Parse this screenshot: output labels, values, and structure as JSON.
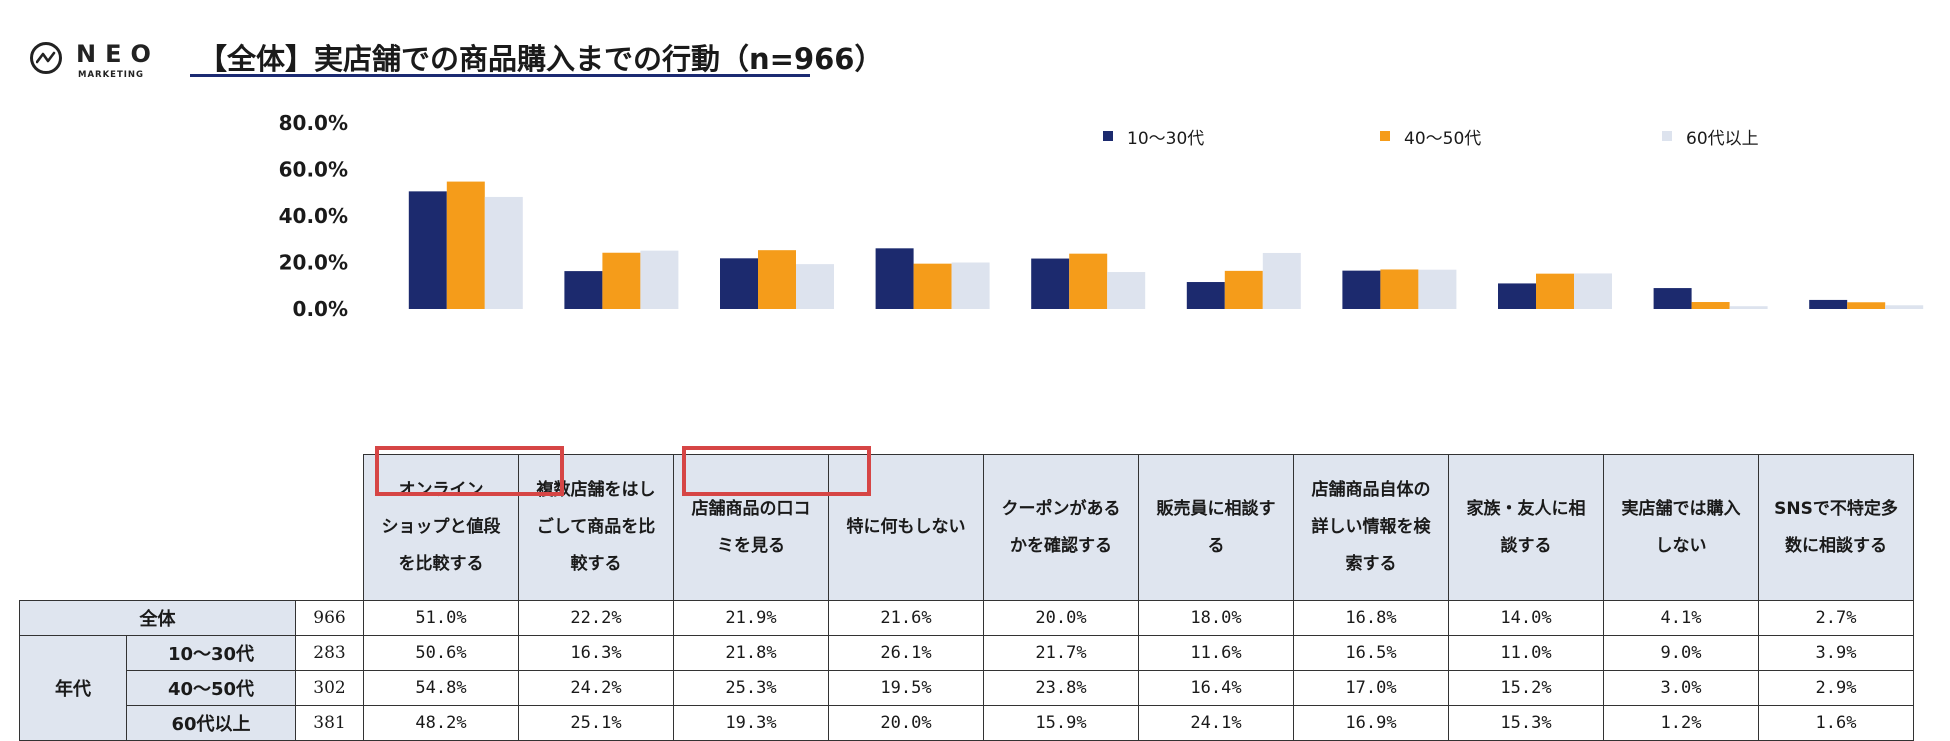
{
  "logo": {
    "word": "NEO",
    "sub": "MARKETING"
  },
  "title": "【全体】実店舗での商品購入までの行動（n=966）",
  "chart_data": {
    "type": "bar",
    "title": "【全体】実店舗での商品購入までの行動（n=966）",
    "ylim": [
      0,
      80
    ],
    "yticks": [
      "80.0%",
      "60.0%",
      "40.0%",
      "20.0%",
      "0.0%"
    ],
    "legend_position": "top-right",
    "categories": [
      "オンラインショップと値段を比較する",
      "複数店舗をはしごして商品を比較する",
      "店舗商品の口コミを見る",
      "特に何もしない",
      "クーポンがあるかを確認する",
      "販売員に相談する",
      "店舗商品自体の詳しい情報を検索する",
      "家族・友人に相談する",
      "実店舗では購入しない",
      "SNSで不特定多数に相談する"
    ],
    "category_lines": [
      [
        "オンライン",
        "ショップと値段",
        "を比較する"
      ],
      [
        "複数店舗をはし",
        "ごして商品を比",
        "較する"
      ],
      [
        "店舗商品の口コ",
        "ミを見る"
      ],
      [
        "特に何もしない"
      ],
      [
        "クーポンがある",
        "かを確認する"
      ],
      [
        "販売員に相談す",
        "る"
      ],
      [
        "店舗商品自体の",
        "詳しい情報を検",
        "索する"
      ],
      [
        "家族・友人に相",
        "談する"
      ],
      [
        "実店舗では購入",
        "しない"
      ],
      [
        "SNSで不特定多",
        "数に相談する"
      ]
    ],
    "series": [
      {
        "name": "10～30代",
        "color": "#1c2a6e",
        "values": [
          50.6,
          16.3,
          21.8,
          26.1,
          21.7,
          11.6,
          16.5,
          11.0,
          9.0,
          3.9
        ]
      },
      {
        "name": "40～50代",
        "color": "#f59c1a",
        "values": [
          54.8,
          24.2,
          25.3,
          19.5,
          23.8,
          16.4,
          17.0,
          15.2,
          3.0,
          2.9
        ]
      },
      {
        "name": "60代以上",
        "color": "#dde3ee",
        "values": [
          48.2,
          25.1,
          19.3,
          20.0,
          15.9,
          24.1,
          16.9,
          15.3,
          1.2,
          1.6
        ]
      }
    ]
  },
  "table": {
    "group_label": "年代",
    "rows": [
      {
        "label": "全体",
        "n": "966",
        "cells": [
          "51.0%",
          "22.2%",
          "21.9%",
          "21.6%",
          "20.0%",
          "18.0%",
          "16.8%",
          "14.0%",
          "4.1%",
          "2.7%"
        ]
      },
      {
        "label": "10～30代",
        "n": "283",
        "cells": [
          "50.6%",
          "16.3%",
          "21.8%",
          "26.1%",
          "21.7%",
          "11.6%",
          "16.5%",
          "11.0%",
          "9.0%",
          "3.9%"
        ]
      },
      {
        "label": "40～50代",
        "n": "302",
        "cells": [
          "54.8%",
          "24.2%",
          "25.3%",
          "19.5%",
          "23.8%",
          "16.4%",
          "17.0%",
          "15.2%",
          "3.0%",
          "2.9%"
        ]
      },
      {
        "label": "60代以上",
        "n": "381",
        "cells": [
          "48.2%",
          "25.1%",
          "19.3%",
          "20.0%",
          "15.9%",
          "24.1%",
          "16.9%",
          "15.3%",
          "1.2%",
          "1.6%"
        ]
      }
    ]
  },
  "highlight_color": "#d64545"
}
